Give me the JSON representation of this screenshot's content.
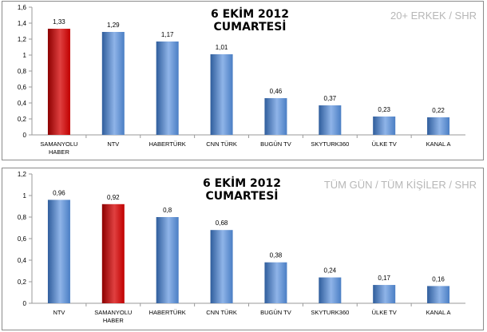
{
  "chart_data": [
    {
      "type": "bar",
      "title": "6 EKİM 2012 CUMARTESİ",
      "subtitle": "20+ ERKEK / SHR",
      "categories": [
        [
          "SAMANYOLU",
          "HABER"
        ],
        [
          "NTV"
        ],
        [
          "HABERTÜRK"
        ],
        [
          "CNN TÜRK"
        ],
        [
          "BUGÜN TV"
        ],
        [
          "SKYTURK360"
        ],
        [
          "ÜLKE TV"
        ],
        [
          "KANAL A"
        ]
      ],
      "values": [
        1.33,
        1.29,
        1.17,
        1.01,
        0.46,
        0.37,
        0.23,
        0.22
      ],
      "value_labels": [
        "1,33",
        "1,29",
        "1,17",
        "1,01",
        "0,46",
        "0,37",
        "0,23",
        "0,22"
      ],
      "highlight_index": 0,
      "ylim": [
        0,
        1.6
      ],
      "yticks": [
        0,
        0.2,
        0.4,
        0.6,
        0.8,
        1,
        1.2,
        1.4,
        1.6
      ],
      "ytick_labels": [
        "0",
        "0,2",
        "0,4",
        "0,6",
        "0,8",
        "1",
        "1,2",
        "1,4",
        "1,6"
      ],
      "grid": false,
      "legend": false
    },
    {
      "type": "bar",
      "title": "6 EKİM 2012 CUMARTESİ",
      "subtitle": "TÜM GÜN / TÜM KİŞİLER / SHR",
      "categories": [
        [
          "NTV"
        ],
        [
          "SAMANYOLU",
          "HABER"
        ],
        [
          "HABERTÜRK"
        ],
        [
          "CNN TÜRK"
        ],
        [
          "BUGÜN TV"
        ],
        [
          "SKYTURK360"
        ],
        [
          "ÜLKE TV"
        ],
        [
          "KANAL A"
        ]
      ],
      "values": [
        0.96,
        0.92,
        0.8,
        0.68,
        0.38,
        0.24,
        0.17,
        0.16
      ],
      "value_labels": [
        "0,96",
        "0,92",
        "0,8",
        "0,68",
        "0,38",
        "0,24",
        "0,17",
        "0,16"
      ],
      "highlight_index": 1,
      "ylim": [
        0,
        1.2
      ],
      "yticks": [
        0,
        0.2,
        0.4,
        0.6,
        0.8,
        1,
        1.2
      ],
      "ytick_labels": [
        "0",
        "0,2",
        "0,4",
        "0,6",
        "0,8",
        "1",
        "1,2"
      ],
      "grid": false,
      "legend": false
    }
  ],
  "colors": {
    "bar_blue": "#4a7ec4",
    "bar_blue_light": "#8fb4e8",
    "bar_blue_dark": "#2f5d9c",
    "bar_red": "#c00000",
    "bar_red_light": "#e04040",
    "bar_red_dark": "#8c0000",
    "axis": "#9a9a9a",
    "subtitle": "#b7b7b7"
  }
}
